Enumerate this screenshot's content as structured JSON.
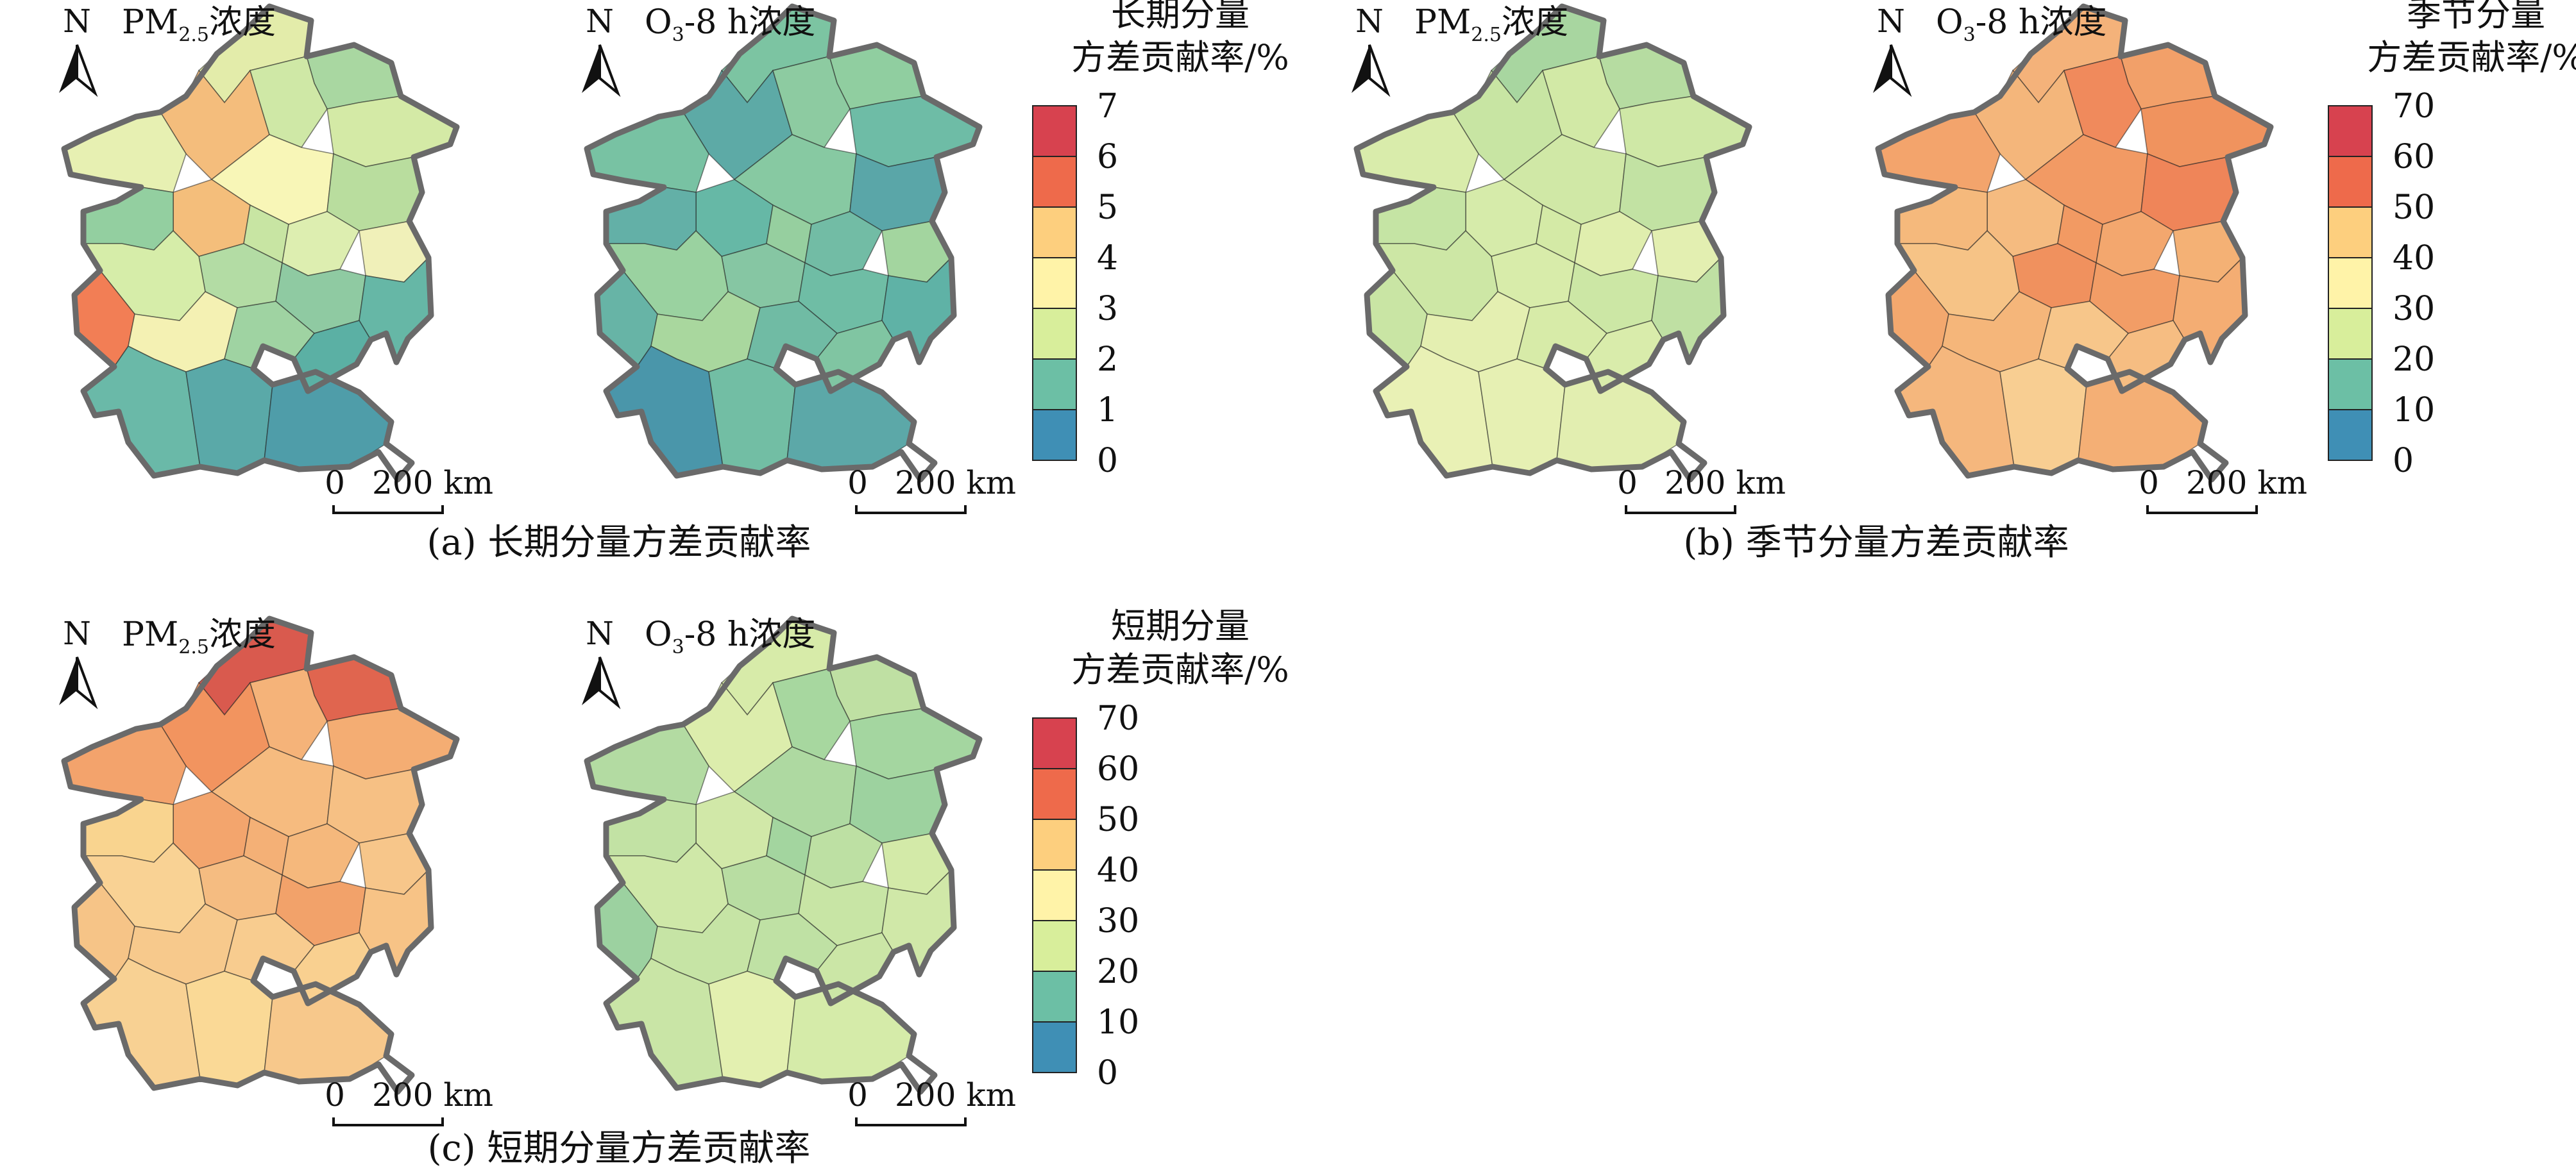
{
  "panels": [
    {
      "id": "a",
      "caption": "(a) 长期分量方差贡献率",
      "maps": [
        {
          "pollutant": "PM2.5",
          "conc": "浓度",
          "north": "N",
          "scale_zero": "0",
          "scale_value": "200 km",
          "region_colors": [
            "#e3ecaa",
            "#a9d7a1",
            "#f4bd7c",
            "#cfe8a6",
            "#d4eaa6",
            "#e7f0b2",
            "#f8f6b7",
            "#b9dd9e",
            "#f4be7b",
            "#c8e5a3",
            "#ddeeb0",
            "#f0f0b9",
            "#93cfa0",
            "#b3dca4",
            "#8fcaa2",
            "#66b7a6",
            "#d6eda9",
            "#f27e55",
            "#f4f1b3",
            "#9fd3a2",
            "#6ab9a8",
            "#5aa9a8",
            "#4f9da9",
            "#5bb0a4"
          ]
        },
        {
          "pollutant": "O3-8h",
          "conc": "浓度",
          "north": "N",
          "scale_zero": "0",
          "scale_value": "200 km",
          "region_colors": [
            "#7cc4a2",
            "#90cea0",
            "#5daaa6",
            "#8dcba1",
            "#6ebca6",
            "#78c2a3",
            "#87c9a2",
            "#5aa6a8",
            "#66b8a6",
            "#96cf9f",
            "#72bca5",
            "#a3d59f",
            "#63b0a7",
            "#86c6a3",
            "#6fbda5",
            "#5fb2a6",
            "#9ad2a0",
            "#67b4a6",
            "#a9d79e",
            "#70bba4",
            "#4a96aa",
            "#72bea4",
            "#5ca8a8",
            "#80c5a2"
          ]
        }
      ],
      "legend": {
        "title_line1": "长期分量",
        "title_line2": "方差贡献率/%",
        "ticks": [
          "7",
          "6",
          "5",
          "4",
          "3",
          "2",
          "1",
          "0"
        ]
      }
    },
    {
      "id": "b",
      "caption": "(b) 季节分量方差贡献率",
      "maps": [
        {
          "pollutant": "PM2.5",
          "conc": "浓度",
          "north": "N",
          "scale_zero": "0",
          "scale_value": "200 km",
          "region_colors": [
            "#a8d6a0",
            "#b6dca1",
            "#c8e5a3",
            "#d2e9a6",
            "#cfe8a6",
            "#d9ecab",
            "#d0e8a6",
            "#c2e2a3",
            "#d6ebaa",
            "#d4eaa6",
            "#e0eeae",
            "#e3efb1",
            "#c5e4a4",
            "#d8ecaa",
            "#cce7a5",
            "#bfe0a3",
            "#cde7a5",
            "#c9e5a4",
            "#e4efb1",
            "#d7eba8",
            "#e9f1b5",
            "#e6f0b3",
            "#e2eeb0",
            "#d9ecab"
          ]
        },
        {
          "pollutant": "O3-8h",
          "conc": "浓度",
          "north": "N",
          "scale_zero": "0",
          "scale_value": "200 km",
          "region_colors": [
            "#f4b27a",
            "#f2a069",
            "#f4b67b",
            "#f08a5c",
            "#f0935e",
            "#f3a46c",
            "#f29a64",
            "#ef8559",
            "#f5bb80",
            "#f29a63",
            "#f3a76e",
            "#f4b175",
            "#f5b97c",
            "#f0915e",
            "#f29d66",
            "#f4ad73",
            "#f6c386",
            "#f3a86e",
            "#f5b67a",
            "#f7c68a",
            "#f5b77d",
            "#f8ce92",
            "#f4af75",
            "#f6bd82"
          ]
        }
      ],
      "legend": {
        "title_line1": "季节分量",
        "title_line2": "方差贡献率/%",
        "ticks": [
          "70",
          "60",
          "50",
          "40",
          "30",
          "20",
          "10",
          "0"
        ]
      }
    },
    {
      "id": "c",
      "caption": "(c) 短期分量方差贡献率",
      "maps": [
        {
          "pollutant": "PM2.5",
          "conc": "浓度",
          "north": "N",
          "scale_zero": "0",
          "scale_value": "200 km",
          "region_colors": [
            "#d95a4e",
            "#e0654f",
            "#f2945f",
            "#f5b379",
            "#f4ad73",
            "#f3a36c",
            "#f6bb7f",
            "#f6c084",
            "#f3a56d",
            "#f4b076",
            "#f5b87c",
            "#f7c68a",
            "#f9d48f",
            "#f5bc81",
            "#f2a26a",
            "#f7c386",
            "#f9d294",
            "#f6c487",
            "#f7c98c",
            "#f8cc8f",
            "#f8d193",
            "#fad996",
            "#f7c88b",
            "#f9d090"
          ]
        },
        {
          "pollutant": "O3-8h",
          "conc": "浓度",
          "north": "N",
          "scale_zero": "0",
          "scale_value": "200 km",
          "region_colors": [
            "#d7eba9",
            "#bfe0a3",
            "#dcedac",
            "#a7d79f",
            "#a4d6a0",
            "#b3dba2",
            "#aed9a1",
            "#9dd29f",
            "#d1e8a8",
            "#a3d59f",
            "#bde0a3",
            "#d3eaa8",
            "#c2e2a4",
            "#b8dda2",
            "#c8e5a5",
            "#d0e8a8",
            "#cfe8a8",
            "#9cd1a0",
            "#c6e4a5",
            "#bfe1a4",
            "#c9e5a6",
            "#e3f0b0",
            "#d5eba9",
            "#cbe6a6"
          ]
        }
      ],
      "legend": {
        "title_line1": "短期分量",
        "title_line2": "方差贡献率/%",
        "ticks": [
          "70",
          "60",
          "50",
          "40",
          "30",
          "20",
          "10",
          "0"
        ]
      }
    }
  ],
  "colorbar": [
    "#d7424f",
    "#ee6a4b",
    "#f69a56",
    "#fdcf7e",
    "#fff3a8",
    "#d8ee9b",
    "#a3d6a1",
    "#6cbfa5",
    "#3f8fb5"
  ]
}
